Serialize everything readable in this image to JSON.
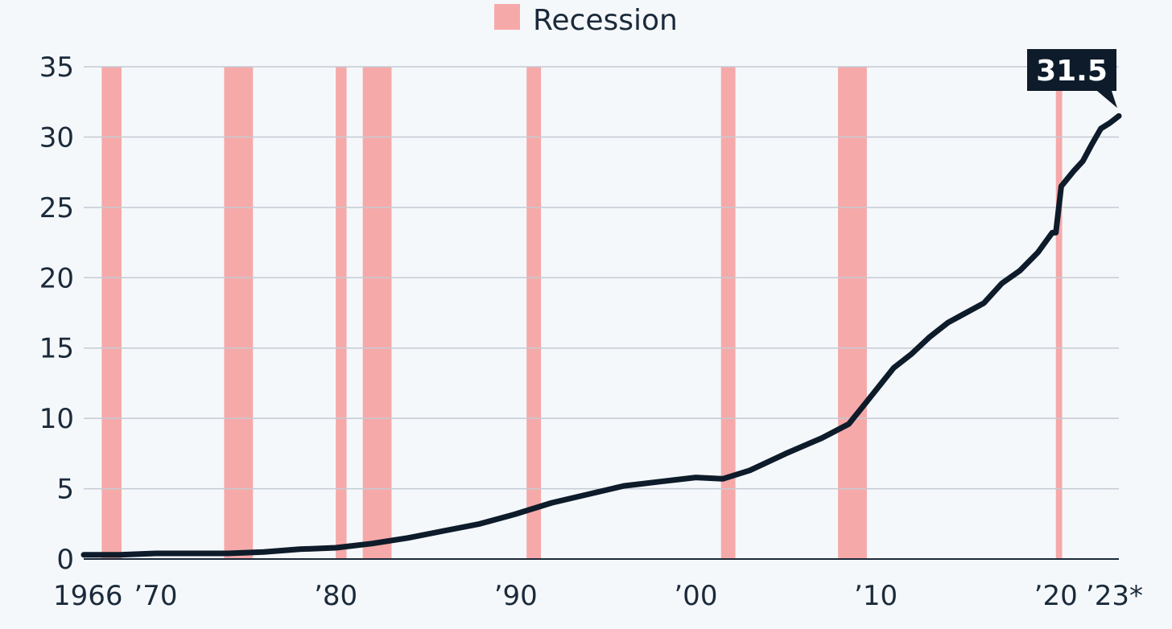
{
  "chart_data": {
    "type": "line",
    "title": "",
    "xlabel": "",
    "ylabel": "",
    "xlim": [
      1966,
      2023.5
    ],
    "ylim": [
      0,
      35
    ],
    "yticks": [
      0,
      5,
      10,
      15,
      20,
      25,
      30,
      35
    ],
    "xticks": [
      {
        "value": 1966,
        "label": "1966"
      },
      {
        "value": 1970,
        "label": "’70"
      },
      {
        "value": 1980,
        "label": "’80"
      },
      {
        "value": 1990,
        "label": "’90"
      },
      {
        "value": 2000,
        "label": "’00"
      },
      {
        "value": 2010,
        "label": "’10"
      },
      {
        "value": 2020,
        "label": "’20"
      },
      {
        "value": 2023,
        "label": "’23*"
      }
    ],
    "grid": true,
    "legend": {
      "position": "top-center",
      "items": [
        {
          "label": "Recession",
          "color": "#f6a9a9"
        }
      ]
    },
    "recessions": [
      {
        "start": 1967.0,
        "end": 1968.1
      },
      {
        "start": 1973.8,
        "end": 1975.4
      },
      {
        "start": 1980.0,
        "end": 1980.6
      },
      {
        "start": 1981.5,
        "end": 1983.1
      },
      {
        "start": 1990.6,
        "end": 1991.4
      },
      {
        "start": 2001.4,
        "end": 2002.2
      },
      {
        "start": 2007.9,
        "end": 2009.5
      },
      {
        "start": 2020.0,
        "end": 2020.35
      }
    ],
    "series": [
      {
        "color": "#0d1b2a",
        "x": [
          1966,
          1968,
          1970,
          1972,
          1974,
          1976,
          1978,
          1980,
          1982,
          1984,
          1986,
          1988,
          1990,
          1992,
          1994,
          1996,
          1998,
          2000,
          2001.5,
          2003,
          2005,
          2007,
          2008.5,
          2009.5,
          2011,
          2012,
          2013,
          2014,
          2015,
          2016,
          2017,
          2018,
          2019,
          2019.8,
          2020,
          2020.3,
          2021,
          2021.5,
          2022,
          2022.5,
          2023,
          2023.5
        ],
        "y": [
          0.3,
          0.3,
          0.4,
          0.4,
          0.4,
          0.5,
          0.7,
          0.8,
          1.1,
          1.5,
          2.0,
          2.5,
          3.2,
          4.0,
          4.6,
          5.2,
          5.5,
          5.8,
          5.7,
          6.3,
          7.5,
          8.6,
          9.6,
          11.2,
          13.6,
          14.6,
          15.8,
          16.8,
          17.5,
          18.2,
          19.6,
          20.5,
          21.8,
          23.2,
          23.2,
          26.5,
          27.6,
          28.3,
          29.5,
          30.6,
          31.0,
          31.5
        ]
      }
    ],
    "callout": {
      "label": "31.5",
      "x": 2023.5,
      "y": 31.5
    }
  }
}
